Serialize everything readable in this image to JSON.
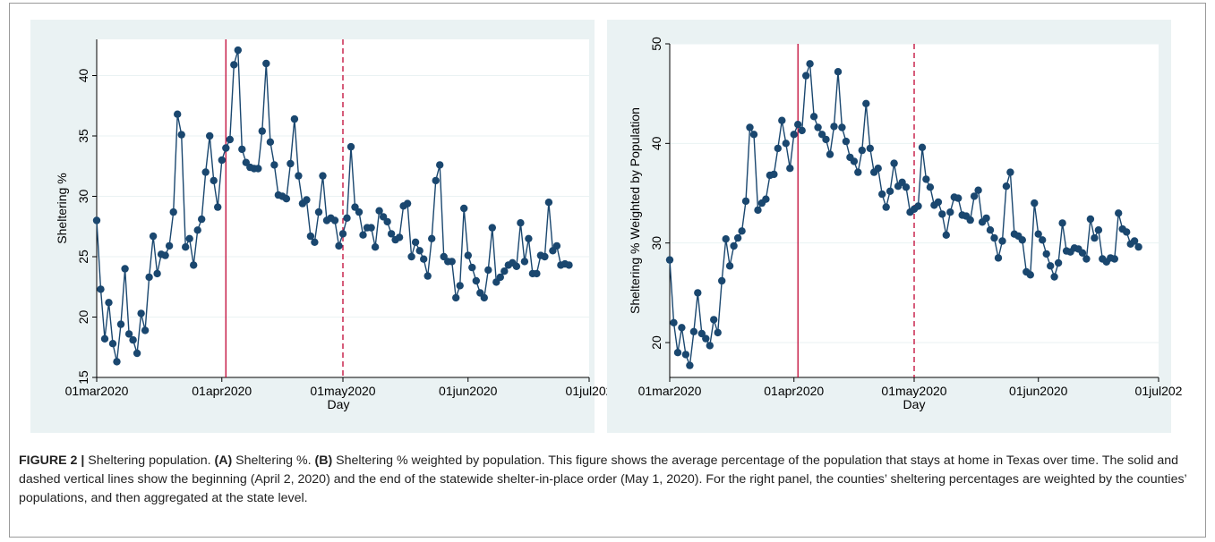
{
  "caption": {
    "figure_label": "FIGURE 2 |",
    "text_1": " Sheltering population. ",
    "label_a": "(A)",
    "text_2": " Sheltering %. ",
    "label_b": "(B)",
    "text_3": " Sheltering % weighted by population. This figure shows the average percentage of the population that stays at home in Texas over time. The solid and dashed vertical lines show the beginning (April 2, 2020) and the end of the statewide shelter-in-place order (May 1, 2020). For the right panel, the counties’ sheltering percentages are weighted by the counties’ populations, and then aggregated at the state level."
  },
  "colors": {
    "panel_bg": "#eaf2f3",
    "plot_bg": "#ffffff",
    "series": "#1a476f",
    "event_line": "#c10534",
    "grid": "#eaf2f3"
  },
  "chart_data": [
    {
      "type": "line",
      "title": "",
      "xlabel": "Day",
      "ylabel": "Sheltering %",
      "x_start": "2020-03-01",
      "x_end": "2020-06-27",
      "x_ticks": [
        "01mar2020",
        "01apr2020",
        "01may2020",
        "01jun2020",
        "01jul202"
      ],
      "xlim": [
        "2020-03-01",
        "2020-07-01"
      ],
      "ylim": [
        15,
        43
      ],
      "y_ticks": [
        15,
        20,
        25,
        30,
        35,
        40
      ],
      "grid": true,
      "vlines": [
        {
          "date": "2020-04-02",
          "style": "solid"
        },
        {
          "date": "2020-05-01",
          "style": "dashed"
        }
      ],
      "values": [
        28.0,
        22.3,
        18.2,
        21.2,
        17.8,
        16.3,
        19.4,
        24.0,
        18.6,
        18.1,
        17.0,
        20.3,
        18.9,
        23.3,
        26.7,
        23.6,
        25.2,
        25.1,
        25.9,
        28.7,
        36.8,
        35.1,
        25.8,
        26.5,
        24.3,
        27.2,
        28.1,
        32.0,
        35.0,
        31.3,
        29.1,
        33.0,
        34.0,
        34.7,
        40.9,
        42.1,
        33.9,
        32.8,
        32.4,
        32.3,
        32.3,
        35.4,
        41.0,
        34.5,
        32.6,
        30.1,
        30.0,
        29.8,
        32.7,
        36.4,
        31.7,
        29.4,
        29.7,
        26.7,
        26.2,
        28.7,
        31.7,
        28.0,
        28.2,
        28.0,
        25.9,
        26.9,
        28.2,
        34.1,
        29.1,
        28.7,
        26.8,
        27.4,
        27.4,
        25.8,
        28.8,
        28.3,
        27.9,
        26.9,
        26.4,
        26.6,
        29.2,
        29.4,
        25.0,
        26.2,
        25.5,
        24.8,
        23.4,
        26.5,
        31.3,
        32.6,
        25.0,
        24.6,
        24.6,
        21.6,
        22.6,
        29.0,
        25.1,
        24.1,
        23.0,
        22.0,
        21.6,
        23.9,
        27.4,
        22.9,
        23.3,
        23.8,
        24.3,
        24.5,
        24.2,
        27.8,
        24.6,
        26.5,
        23.6,
        23.6,
        25.1,
        25.0,
        29.5,
        25.5,
        25.9,
        24.3,
        24.4,
        24.3
      ]
    },
    {
      "type": "line",
      "title": "",
      "xlabel": "Day",
      "ylabel": "Sheltering % Weighted by Population",
      "x_start": "2020-03-01",
      "x_end": "2020-06-27",
      "x_ticks": [
        "01mar2020",
        "01apr2020",
        "01may2020",
        "01jun2020",
        "01jul202"
      ],
      "xlim": [
        "2020-03-01",
        "2020-07-01"
      ],
      "ylim": [
        16.5,
        50
      ],
      "y_ticks": [
        20,
        30,
        40,
        50
      ],
      "grid": true,
      "vlines": [
        {
          "date": "2020-04-02",
          "style": "solid"
        },
        {
          "date": "2020-05-01",
          "style": "dashed"
        }
      ],
      "values": [
        28.3,
        22.0,
        19.0,
        21.5,
        18.8,
        17.7,
        21.1,
        25.0,
        20.9,
        20.4,
        19.7,
        22.3,
        21.0,
        26.2,
        30.4,
        27.7,
        29.7,
        30.5,
        31.2,
        34.2,
        41.6,
        40.9,
        33.3,
        34.0,
        34.4,
        36.8,
        36.9,
        39.5,
        42.3,
        40.0,
        37.5,
        40.9,
        41.9,
        41.3,
        46.8,
        48.0,
        42.7,
        41.6,
        40.9,
        40.4,
        38.9,
        41.7,
        47.2,
        41.6,
        40.2,
        38.6,
        38.2,
        37.1,
        39.3,
        44.0,
        39.5,
        37.1,
        37.5,
        34.9,
        33.6,
        35.2,
        38.0,
        35.7,
        36.1,
        35.6,
        33.1,
        33.4,
        33.7,
        39.6,
        36.4,
        35.6,
        33.8,
        34.1,
        32.9,
        30.8,
        33.1,
        34.6,
        34.5,
        32.8,
        32.7,
        32.3,
        34.7,
        35.3,
        32.1,
        32.5,
        31.3,
        30.5,
        28.5,
        30.2,
        35.7,
        37.1,
        30.9,
        30.7,
        30.3,
        27.1,
        26.8,
        34.0,
        30.9,
        30.3,
        28.9,
        27.7,
        26.6,
        28.0,
        32.0,
        29.2,
        29.1,
        29.5,
        29.4,
        29.0,
        28.4,
        32.4,
        30.5,
        31.3,
        28.4,
        28.1,
        28.5,
        28.4,
        33.0,
        31.4,
        31.1,
        29.9,
        30.2,
        29.6
      ]
    }
  ]
}
